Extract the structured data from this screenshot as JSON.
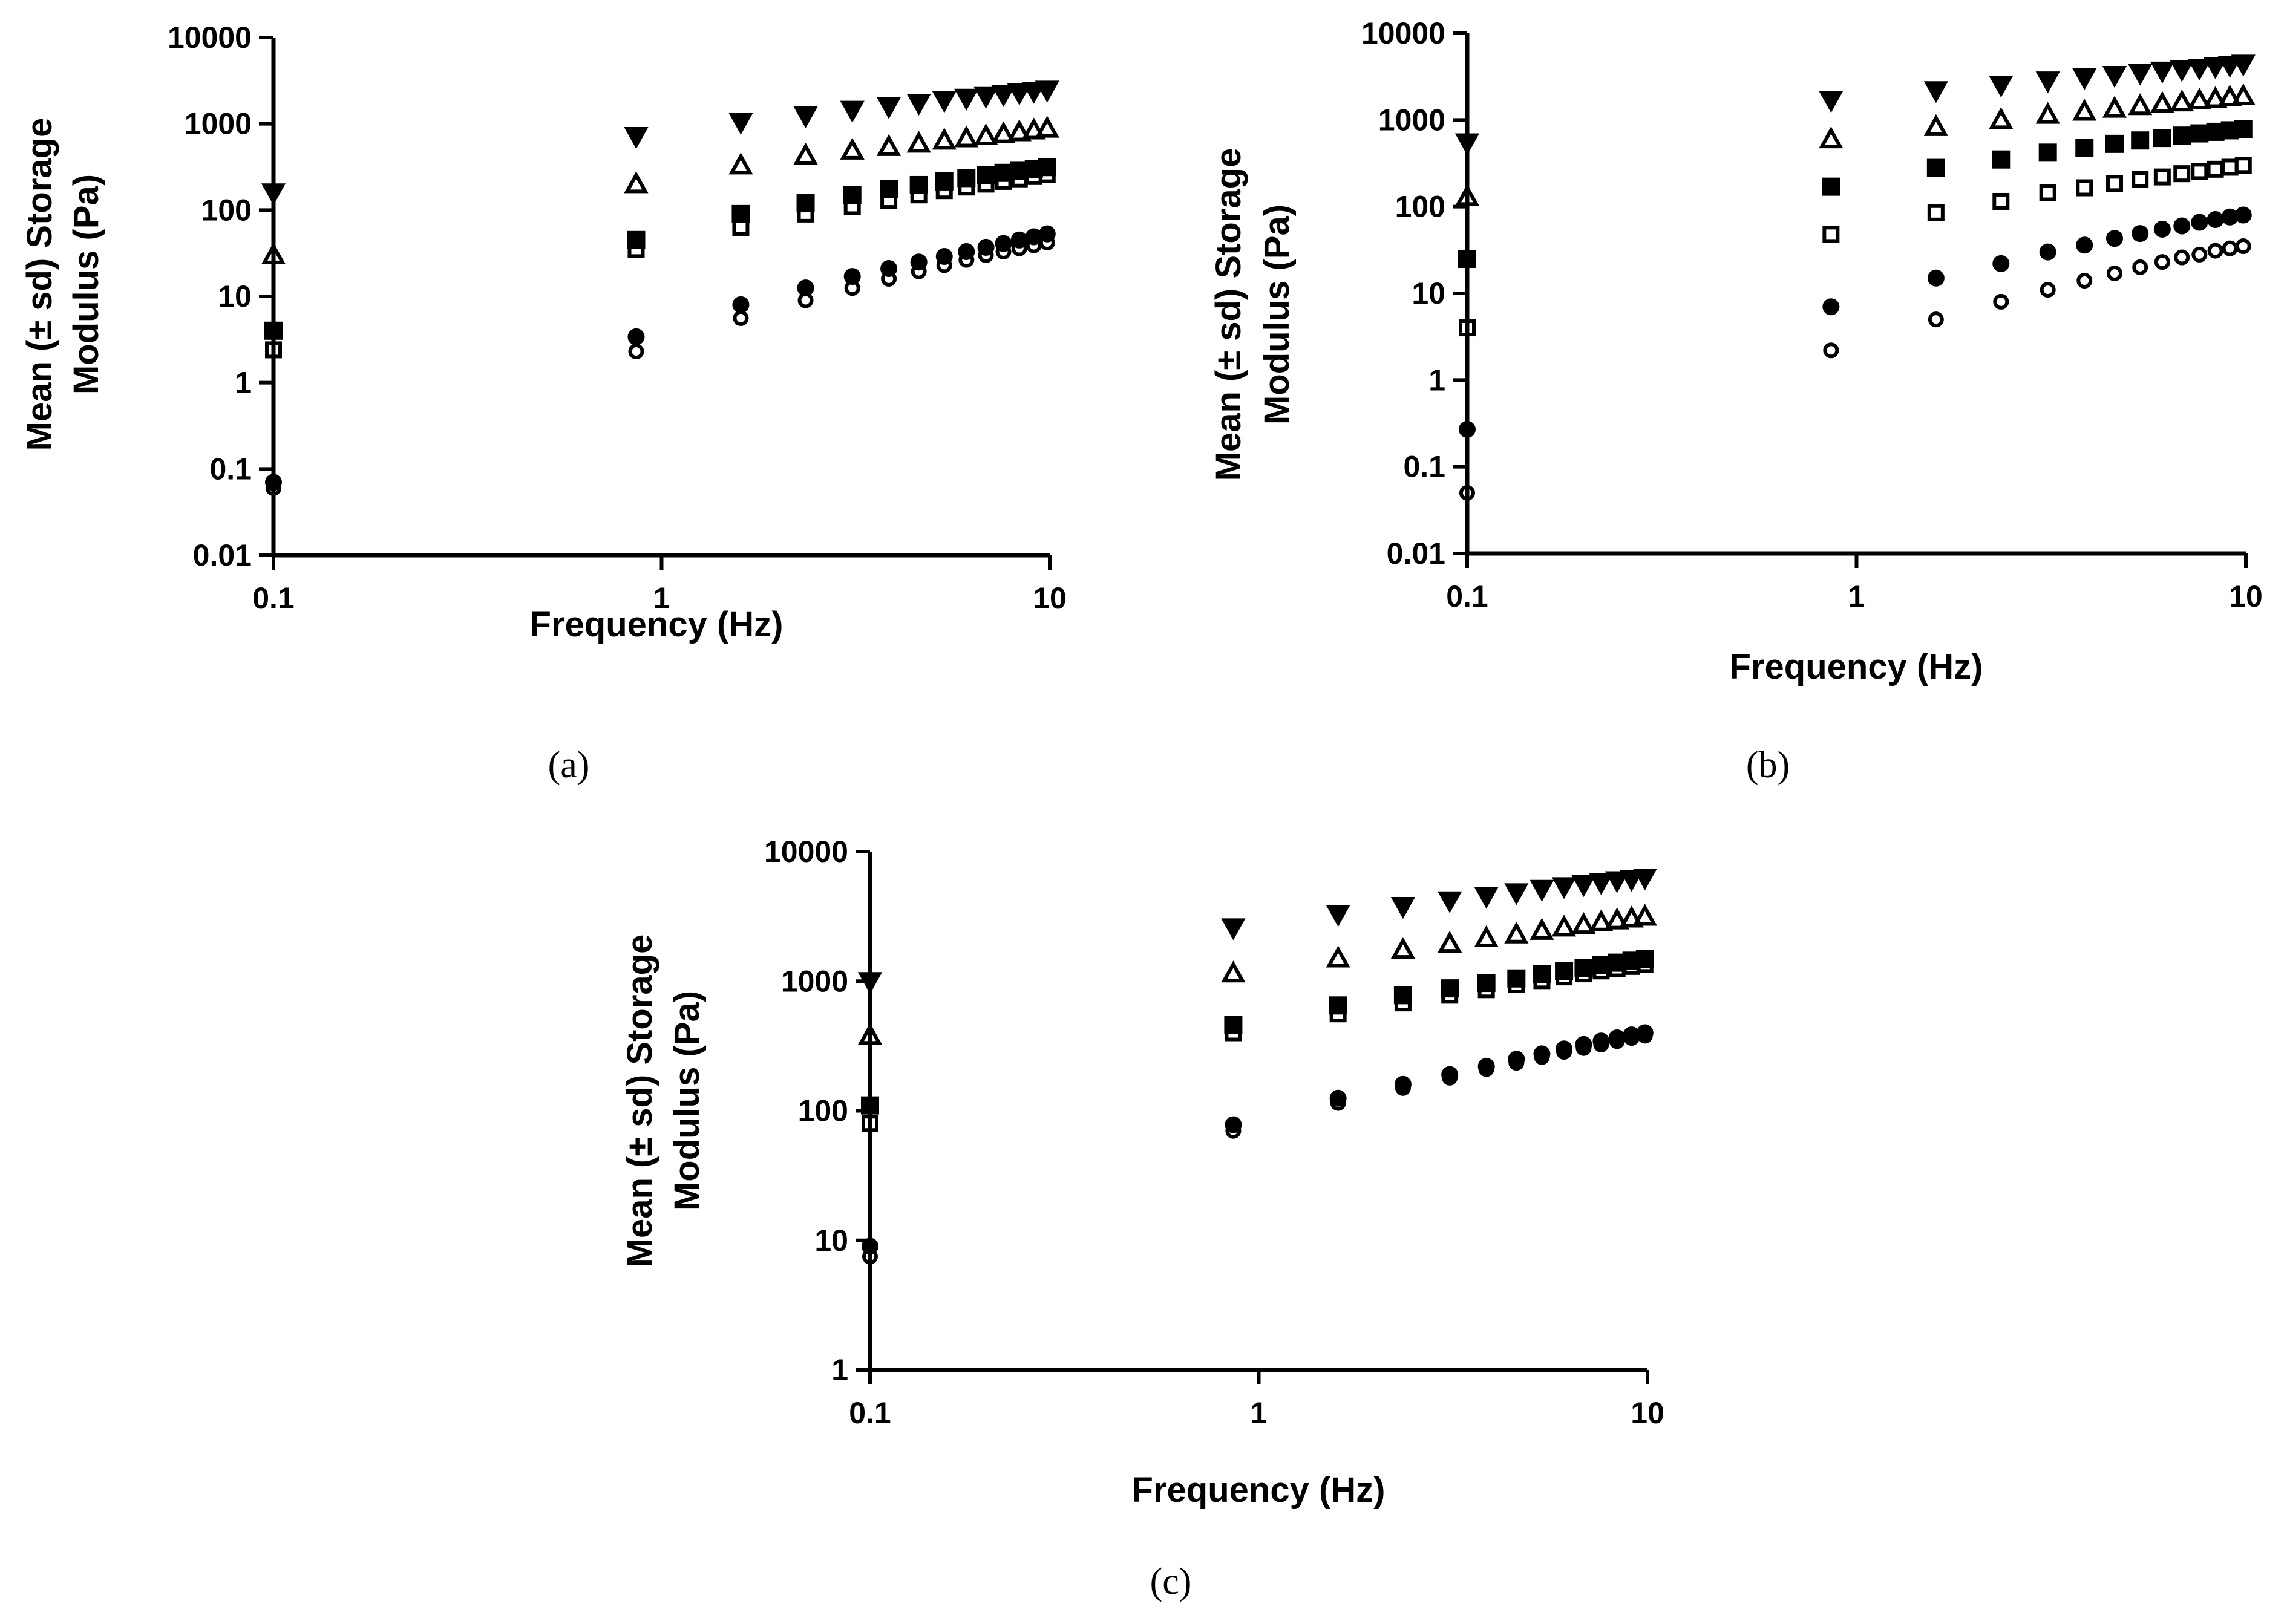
{
  "chart_data": [
    {
      "type": "scatter",
      "panel_label": "(a)",
      "xlabel": "Frequency (Hz)",
      "ylabel_line1": "Mean (± sd) Storage",
      "ylabel_line2": "Modulus (Pa)",
      "xscale": "log",
      "yscale": "log",
      "xlim": [
        0.1,
        10
      ],
      "ylim": [
        0.01,
        10000
      ],
      "x_ticks": [
        {
          "value": 0.1,
          "label": "0.1"
        },
        {
          "value": 1,
          "label": "1"
        },
        {
          "value": 10,
          "label": "10"
        }
      ],
      "y_ticks": [
        {
          "value": 0.01,
          "label": "0.01"
        },
        {
          "value": 0.1,
          "label": "0.1"
        },
        {
          "value": 1,
          "label": "1"
        },
        {
          "value": 10,
          "label": "10"
        },
        {
          "value": 100,
          "label": "100"
        },
        {
          "value": 1000,
          "label": "1000"
        },
        {
          "value": 10000,
          "label": "10000"
        }
      ],
      "x": [
        0.1,
        0.86,
        1.6,
        2.35,
        3.1,
        3.85,
        4.6,
        5.35,
        6.1,
        6.85,
        7.6,
        8.35,
        9.1,
        9.85
      ],
      "series": [
        {
          "marker": "triangle-down-filled",
          "values": [
            160,
            720,
            1050,
            1250,
            1450,
            1600,
            1750,
            1880,
            2000,
            2100,
            2200,
            2300,
            2400,
            2480
          ]
        },
        {
          "marker": "triangle-up-open",
          "values": [
            30,
            200,
            330,
            430,
            490,
            540,
            590,
            640,
            680,
            720,
            760,
            800,
            840,
            880
          ]
        },
        {
          "marker": "square-filled",
          "values": [
            4,
            45,
            90,
            120,
            150,
            175,
            195,
            215,
            235,
            255,
            270,
            285,
            300,
            315
          ]
        },
        {
          "marker": "square-open",
          "values": [
            2.4,
            35,
            63,
            90,
            110,
            130,
            150,
            168,
            185,
            200,
            215,
            230,
            245,
            258
          ]
        },
        {
          "marker": "circle-filled",
          "values": [
            0.07,
            3.4,
            8,
            12.5,
            17,
            21,
            25,
            29,
            33,
            37,
            41,
            45,
            49,
            53
          ]
        },
        {
          "marker": "circle-open",
          "values": [
            0.06,
            2.3,
            5.6,
            9,
            12.5,
            16,
            19.5,
            23,
            26.5,
            30,
            33,
            36,
            39,
            42
          ]
        }
      ]
    },
    {
      "type": "scatter",
      "panel_label": "(b)",
      "xlabel": "Frequency (Hz)",
      "ylabel_line1": "Mean (± sd) Storage",
      "ylabel_line2": "Modulus (Pa)",
      "xscale": "log",
      "yscale": "log",
      "xlim": [
        0.1,
        10
      ],
      "ylim": [
        0.01,
        10000
      ],
      "x_ticks": [
        {
          "value": 0.1,
          "label": "0.1"
        },
        {
          "value": 1,
          "label": "1"
        },
        {
          "value": 10,
          "label": "10"
        }
      ],
      "y_ticks": [
        {
          "value": 0.01,
          "label": "0.01"
        },
        {
          "value": 0.1,
          "label": "0.1"
        },
        {
          "value": 1,
          "label": "1"
        },
        {
          "value": 10,
          "label": "10"
        },
        {
          "value": 100,
          "label": "100"
        },
        {
          "value": 1000,
          "label": "1000"
        },
        {
          "value": 10000,
          "label": "10000"
        }
      ],
      "x": [
        0.1,
        0.86,
        1.6,
        2.35,
        3.1,
        3.85,
        4.6,
        5.35,
        6.1,
        6.85,
        7.6,
        8.35,
        9.1,
        9.85
      ],
      "series": [
        {
          "marker": "triangle-down-filled",
          "values": [
            550,
            1700,
            2200,
            2550,
            2850,
            3100,
            3300,
            3500,
            3700,
            3850,
            4000,
            4150,
            4300,
            4450
          ]
        },
        {
          "marker": "triangle-up-open",
          "values": [
            130,
            600,
            830,
            1000,
            1150,
            1250,
            1350,
            1450,
            1530,
            1600,
            1680,
            1750,
            1820,
            1880
          ]
        },
        {
          "marker": "square-filled",
          "values": [
            25,
            170,
            280,
            350,
            420,
            480,
            530,
            580,
            620,
            660,
            700,
            730,
            760,
            790
          ]
        },
        {
          "marker": "square-open",
          "values": [
            4,
            48,
            85,
            115,
            145,
            165,
            185,
            205,
            220,
            240,
            255,
            270,
            285,
            300
          ]
        },
        {
          "marker": "circle-filled",
          "values": [
            0.27,
            7,
            15,
            22,
            30,
            36,
            43,
            49,
            55,
            60,
            66,
            71,
            76,
            80
          ]
        },
        {
          "marker": "circle-open",
          "values": [
            0.05,
            2.2,
            5,
            8,
            11,
            14,
            17,
            20,
            23,
            26,
            28,
            31,
            33,
            35
          ]
        }
      ]
    },
    {
      "type": "scatter",
      "panel_label": "(c)",
      "xlabel": "Frequency (Hz)",
      "ylabel_line1": "Mean (± sd) Storage",
      "ylabel_line2": "Modulus (Pa)",
      "xscale": "log",
      "yscale": "log",
      "xlim": [
        0.1,
        10
      ],
      "ylim": [
        1,
        10000
      ],
      "x_ticks": [
        {
          "value": 0.1,
          "label": "0.1"
        },
        {
          "value": 1,
          "label": "1"
        },
        {
          "value": 10,
          "label": "10"
        }
      ],
      "y_ticks": [
        {
          "value": 1,
          "label": "1"
        },
        {
          "value": 10,
          "label": "10"
        },
        {
          "value": 100,
          "label": "100"
        },
        {
          "value": 1000,
          "label": "1000"
        },
        {
          "value": 10000,
          "label": "10000"
        }
      ],
      "x": [
        0.1,
        0.86,
        1.6,
        2.35,
        3.1,
        3.85,
        4.6,
        5.35,
        6.1,
        6.85,
        7.6,
        8.35,
        9.1,
        9.85
      ],
      "series": [
        {
          "marker": "triangle-down-filled",
          "values": [
            1000,
            2600,
            3300,
            3800,
            4200,
            4550,
            4850,
            5150,
            5400,
            5600,
            5800,
            6000,
            6150,
            6300
          ]
        },
        {
          "marker": "triangle-up-open",
          "values": [
            380,
            1150,
            1500,
            1750,
            1950,
            2150,
            2300,
            2450,
            2600,
            2720,
            2850,
            2950,
            3050,
            3150
          ]
        },
        {
          "marker": "square-filled",
          "values": [
            110,
            460,
            650,
            780,
            880,
            970,
            1050,
            1130,
            1200,
            1270,
            1330,
            1390,
            1440,
            1490
          ]
        },
        {
          "marker": "square-open",
          "values": [
            80,
            400,
            560,
            680,
            780,
            860,
            940,
            1010,
            1080,
            1140,
            1200,
            1250,
            1300,
            1350
          ]
        },
        {
          "marker": "circle-filled",
          "values": [
            9,
            78,
            125,
            160,
            190,
            220,
            250,
            275,
            300,
            325,
            345,
            365,
            385,
            400
          ]
        },
        {
          "marker": "circle-open",
          "values": [
            7.5,
            70,
            115,
            150,
            180,
            210,
            235,
            260,
            285,
            305,
            325,
            345,
            365,
            380
          ]
        }
      ]
    }
  ]
}
